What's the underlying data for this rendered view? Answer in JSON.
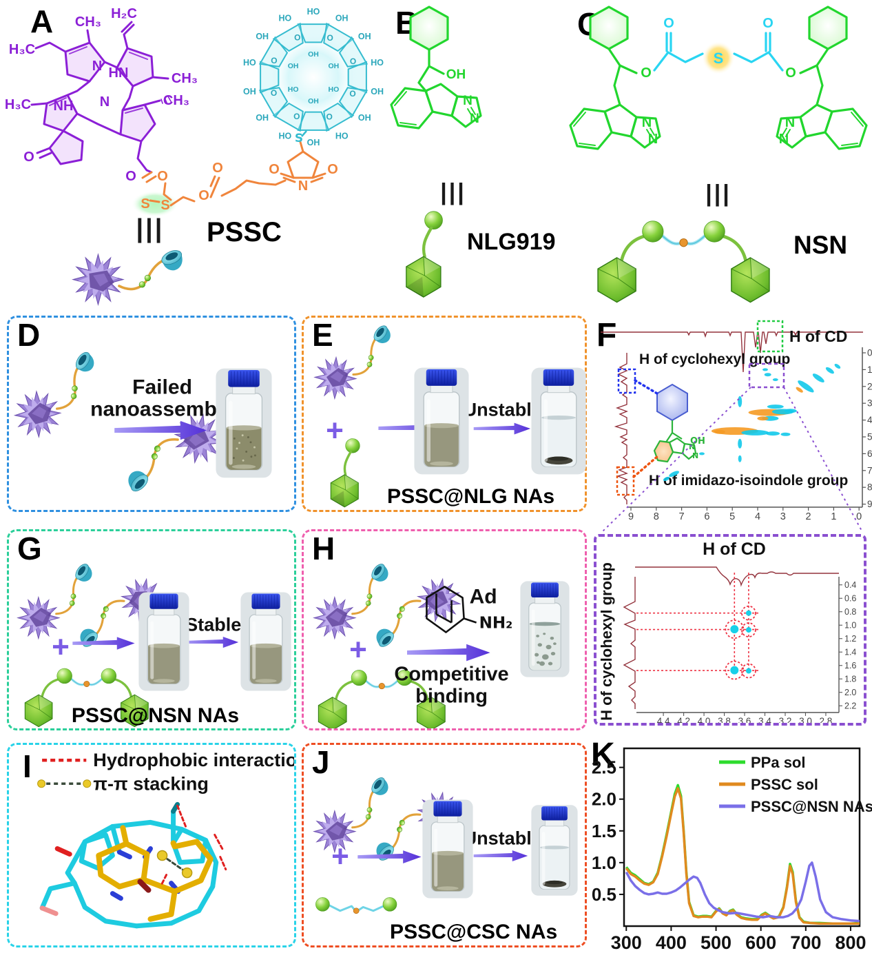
{
  "panels": {
    "a": {
      "label": "A",
      "molecule_name": "PSSC",
      "equiv": "|||",
      "porphyrin": {
        "ch3_top": "CH₃",
        "h2c": "H₂C",
        "h3c_upper": "H₃C",
        "ch3_right": "CH₃",
        "h3c_left": "H₃C",
        "n1": "N",
        "hn": "HN",
        "nh": "NH",
        "n2": "N",
        "ch3_stereo": "CH₃",
        "o_ketone": "O",
        "o_carbonyl": "O"
      },
      "linker": {
        "o_ester": "O",
        "s1": "S",
        "s2": "S",
        "o_ester2": "O",
        "o_carbonyl2": "O",
        "o_mal_left": "O",
        "o_mal_right": "O",
        "n": "N"
      },
      "cd": {
        "outer_labels": [
          "HO",
          "OH",
          "OH",
          "HO",
          "OH",
          "OH",
          "HO",
          "OH",
          "HO",
          "OH",
          "OH",
          "HO",
          "OH",
          "HO"
        ],
        "o_labels": [
          "O",
          "O",
          "O",
          "O",
          "O",
          "O",
          "O",
          "O"
        ],
        "inner_labels": [
          "OH",
          "OH",
          "HO",
          "OH",
          "HO",
          "OH"
        ],
        "s": "S"
      }
    },
    "b": {
      "label": "B",
      "molecule_name": "NLG919",
      "equiv": "|||",
      "oh": "OH",
      "n1": "N",
      "n2": "N"
    },
    "c": {
      "label": "C",
      "molecule_name": "NSN",
      "equiv": "|||",
      "s": "S",
      "o_carbonyl_left": "O",
      "o_carbonyl_right": "O",
      "o_ester_left": "O",
      "o_ester_right": "O",
      "n_left_1": "N",
      "n_left_2": "N",
      "n_right_1": "N",
      "n_right_2": "N"
    },
    "d": {
      "label": "D",
      "arrow_text_1": "Failed",
      "arrow_text_2": "nanoassembly"
    },
    "e": {
      "label": "E",
      "plus": "+",
      "arrow2_text": "Unstable",
      "caption": "PSSC@NLG NAs"
    },
    "f": {
      "label": "F",
      "cd_box_label": "H of CD",
      "cyclohexyl_label": "H of cyclohexyl group",
      "imidazo_label": "H of imidazo-isoindole group",
      "mol_oh": "OH",
      "mol_n1": "N",
      "mol_n2": "N"
    },
    "g": {
      "label": "G",
      "plus": "+",
      "arrow2_text": "Stable",
      "caption": "PSSC@NSN NAs"
    },
    "h": {
      "label": "H",
      "plus": "+",
      "ad": "Ad",
      "nh2": "NH₂",
      "arrow_text_1": "Competitive",
      "arrow_text_2": "binding"
    },
    "noesy_zoom": {
      "top_label": "H of CD",
      "left_label": "H of cyclohexyl group"
    },
    "i": {
      "label": "I",
      "legend": [
        {
          "text": "Hydrophobic interaction"
        },
        {
          "text": "π-π stacking"
        }
      ]
    },
    "j": {
      "label": "J",
      "plus": "+",
      "arrow2_text": "Unstable",
      "caption": "PSSC@CSC NAs"
    },
    "k": {
      "label": "K"
    }
  },
  "chart_data": [
    {
      "type": "line",
      "title": "",
      "xlabel": "",
      "ylabel": "",
      "xlim": [
        295,
        820
      ],
      "ylim": [
        0,
        2.8
      ],
      "x_ticks": [
        300,
        400,
        500,
        600,
        700,
        800
      ],
      "y_ticks": [
        0.5,
        1.0,
        1.5,
        2.0,
        2.5
      ],
      "legend_position": "top-right",
      "series": [
        {
          "name": "PPa sol",
          "color": "#2ddc2d",
          "x": [
            300,
            310,
            320,
            330,
            340,
            350,
            360,
            370,
            380,
            390,
            400,
            408,
            415,
            422,
            428,
            434,
            440,
            450,
            460,
            470,
            480,
            490,
            500,
            507,
            515,
            523,
            531,
            538,
            546,
            556,
            568,
            580,
            592,
            602,
            610,
            618,
            628,
            640,
            650,
            658,
            665,
            671,
            678,
            686,
            695,
            710,
            730,
            760,
            800,
            820
          ],
          "y": [
            0.93,
            0.84,
            0.8,
            0.74,
            0.68,
            0.66,
            0.7,
            0.84,
            1.12,
            1.45,
            1.8,
            2.08,
            2.22,
            2.05,
            1.5,
            0.85,
            0.38,
            0.17,
            0.15,
            0.16,
            0.16,
            0.15,
            0.24,
            0.28,
            0.21,
            0.18,
            0.24,
            0.26,
            0.19,
            0.14,
            0.12,
            0.11,
            0.11,
            0.18,
            0.21,
            0.17,
            0.13,
            0.15,
            0.3,
            0.62,
            0.98,
            0.85,
            0.4,
            0.14,
            0.07,
            0.05,
            0.05,
            0.04,
            0.04,
            0.05
          ]
        },
        {
          "name": "PSSC sol",
          "color": "#e08a1f",
          "x": [
            300,
            310,
            320,
            330,
            340,
            350,
            360,
            370,
            380,
            390,
            400,
            408,
            415,
            422,
            428,
            434,
            440,
            450,
            460,
            470,
            480,
            490,
            500,
            507,
            515,
            523,
            531,
            538,
            546,
            556,
            568,
            580,
            592,
            602,
            610,
            618,
            628,
            640,
            650,
            658,
            665,
            671,
            678,
            686,
            695,
            710,
            730,
            760,
            800,
            820
          ],
          "y": [
            0.91,
            0.82,
            0.78,
            0.72,
            0.67,
            0.65,
            0.69,
            0.82,
            1.1,
            1.42,
            1.77,
            2.04,
            2.17,
            2.01,
            1.47,
            0.82,
            0.36,
            0.16,
            0.14,
            0.15,
            0.15,
            0.14,
            0.23,
            0.27,
            0.2,
            0.17,
            0.23,
            0.25,
            0.18,
            0.13,
            0.11,
            0.1,
            0.1,
            0.17,
            0.2,
            0.16,
            0.12,
            0.14,
            0.29,
            0.6,
            0.95,
            0.82,
            0.38,
            0.13,
            0.06,
            0.05,
            0.04,
            0.04,
            0.04,
            0.04
          ]
        },
        {
          "name": "PSSC@NSN NAs",
          "color": "#7a6fe8",
          "x": [
            300,
            310,
            320,
            330,
            340,
            350,
            360,
            370,
            380,
            390,
            400,
            410,
            420,
            430,
            440,
            450,
            458,
            465,
            475,
            485,
            495,
            505,
            515,
            530,
            545,
            560,
            575,
            590,
            605,
            620,
            635,
            650,
            660,
            670,
            680,
            690,
            700,
            708,
            714,
            722,
            732,
            745,
            760,
            780,
            800,
            820
          ],
          "y": [
            0.85,
            0.72,
            0.63,
            0.57,
            0.52,
            0.5,
            0.51,
            0.53,
            0.51,
            0.51,
            0.53,
            0.56,
            0.61,
            0.67,
            0.73,
            0.78,
            0.76,
            0.68,
            0.5,
            0.36,
            0.29,
            0.25,
            0.22,
            0.2,
            0.21,
            0.19,
            0.17,
            0.15,
            0.14,
            0.16,
            0.14,
            0.14,
            0.16,
            0.2,
            0.28,
            0.42,
            0.7,
            0.95,
            1.0,
            0.78,
            0.42,
            0.22,
            0.14,
            0.11,
            0.09,
            0.08
          ]
        }
      ]
    },
    {
      "type": "scatter",
      "title": "H of CD",
      "ylabel": "H of cyclohexyl group",
      "x_ticks": [
        4.4,
        4.2,
        4.0,
        3.8,
        3.6,
        3.4,
        3.2,
        3.0,
        2.8
      ],
      "y_ticks": [
        0.4,
        0.6,
        0.8,
        1.0,
        1.2,
        1.4,
        1.6,
        1.8,
        2.0,
        2.2
      ],
      "x_reversed": true,
      "points": [
        {
          "x": 3.56,
          "y": 0.82,
          "size": "small"
        },
        {
          "x": 3.7,
          "y": 1.06,
          "size": "large"
        },
        {
          "x": 3.56,
          "y": 1.07,
          "size": "small"
        },
        {
          "x": 3.7,
          "y": 1.67,
          "size": "large"
        },
        {
          "x": 3.56,
          "y": 1.68,
          "size": "small"
        }
      ],
      "guide_rows": [
        0.82,
        1.065,
        1.675
      ],
      "guide_cols": [
        3.7,
        3.56
      ]
    },
    {
      "type": "heatmap",
      "title": "",
      "x_ticks": [
        9,
        8,
        7,
        6,
        5,
        4,
        3,
        2,
        1,
        0
      ],
      "y_ticks": [
        0,
        1,
        2,
        3,
        4,
        5,
        6,
        7,
        8,
        9
      ],
      "x_reversed": true,
      "cross_peaks_approx": [
        [
          2.1,
          2.0,
          14,
          4,
          "c",
          35
        ],
        [
          1.6,
          1.5,
          10,
          3.5,
          "c",
          35
        ],
        [
          1.15,
          1.05,
          7,
          3,
          "c",
          35
        ],
        [
          0.85,
          0.8,
          5,
          2.5,
          "c",
          35
        ],
        [
          2.35,
          2.2,
          6,
          2.5,
          "o",
          35
        ],
        [
          3.55,
          3.55,
          30,
          5,
          "o",
          0
        ],
        [
          3.0,
          3.5,
          16,
          4,
          "c",
          0
        ],
        [
          2.7,
          3.45,
          9,
          3,
          "c",
          0
        ],
        [
          3.3,
          3.2,
          12,
          3,
          "c",
          0
        ],
        [
          3.5,
          3.9,
          12,
          3.5,
          "c",
          0
        ],
        [
          3.8,
          3.9,
          8,
          3,
          "o",
          0
        ],
        [
          4.9,
          4.65,
          34,
          5.5,
          "o",
          0
        ],
        [
          4.1,
          4.75,
          20,
          4,
          "c",
          0
        ],
        [
          3.4,
          4.8,
          10,
          3,
          "c",
          0
        ],
        [
          5.5,
          4.7,
          8,
          3,
          "o",
          0
        ],
        [
          2.9,
          4.85,
          7,
          2.5,
          "c",
          0
        ],
        [
          4.7,
          5.4,
          3,
          7,
          "c",
          0
        ],
        [
          4.7,
          2.9,
          3,
          8,
          "c",
          0
        ],
        [
          4.7,
          6.3,
          2.5,
          5,
          "c",
          0
        ],
        [
          7.3,
          7.2,
          8,
          3,
          "c",
          -25
        ],
        [
          7.6,
          7.5,
          5,
          2.5,
          "c",
          -25
        ],
        [
          6.2,
          6.0,
          4,
          2,
          "c",
          0
        ],
        [
          3.6,
          1.3,
          5,
          2.5,
          "c",
          0
        ],
        [
          3.3,
          1.6,
          4,
          2,
          "c",
          0
        ],
        [
          3.7,
          1.0,
          4,
          2,
          "c",
          0
        ]
      ]
    }
  ],
  "colors": {
    "panel_d_border": "#2f90e0",
    "panel_e_border": "#f0922b",
    "panel_g_border": "#2bcf9a",
    "panel_h_border": "#ef5fae",
    "panel_i_border": "#29d3e8",
    "panel_j_border": "#ee4e23",
    "noesy_zoom_border": "#8a4fd0",
    "nmr_trace": "#93323c",
    "cross_peak_cyan": "#12c9ea",
    "cross_peak_orange": "#f59a23",
    "porphyrin": "#8b1fd6",
    "cyclodextrin": "#35bccf",
    "linker_orange": "#f0853c",
    "green_molecule": "#22d62e",
    "cyan_linker": "#29d5f2",
    "arrow_purple": "#5531d8"
  }
}
